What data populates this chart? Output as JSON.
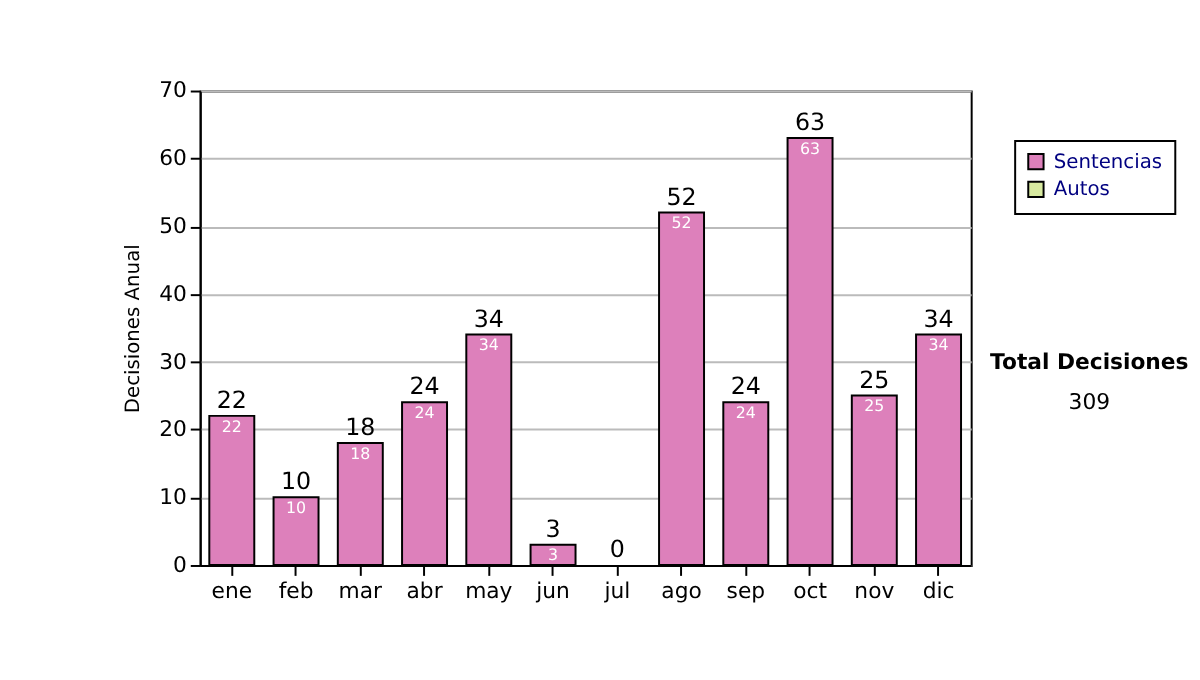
{
  "chart_data": {
    "type": "bar",
    "stacked": true,
    "ylabel": "Decisiones Anual",
    "categories": [
      "ene",
      "feb",
      "mar",
      "abr",
      "may",
      "jun",
      "jul",
      "ago",
      "sep",
      "oct",
      "nov",
      "dic"
    ],
    "series": [
      {
        "name": "Sentencias",
        "color": "#dd80bb",
        "values": [
          22,
          10,
          18,
          24,
          34,
          3,
          0,
          52,
          24,
          63,
          25,
          34
        ],
        "value_labels": [
          "22",
          "10",
          "18",
          "24",
          "34",
          "3",
          null,
          "52",
          "24",
          "63",
          "25",
          "34"
        ]
      },
      {
        "name": "Autos",
        "color": "#d8eaa0",
        "values": [
          0,
          0,
          0,
          0,
          0,
          0,
          0,
          0,
          0,
          0,
          0,
          0
        ]
      }
    ],
    "totals": [
      "22",
      "10",
      "18",
      "24",
      "34",
      "3",
      "0",
      "52",
      "24",
      "63",
      "25",
      "34"
    ],
    "ylim": [
      0,
      70
    ],
    "yticks": [
      0,
      10,
      20,
      30,
      40,
      50,
      60,
      70
    ],
    "grid": "y",
    "legend": "right",
    "annotations": [
      "Total Decisiones",
      "309"
    ]
  }
}
